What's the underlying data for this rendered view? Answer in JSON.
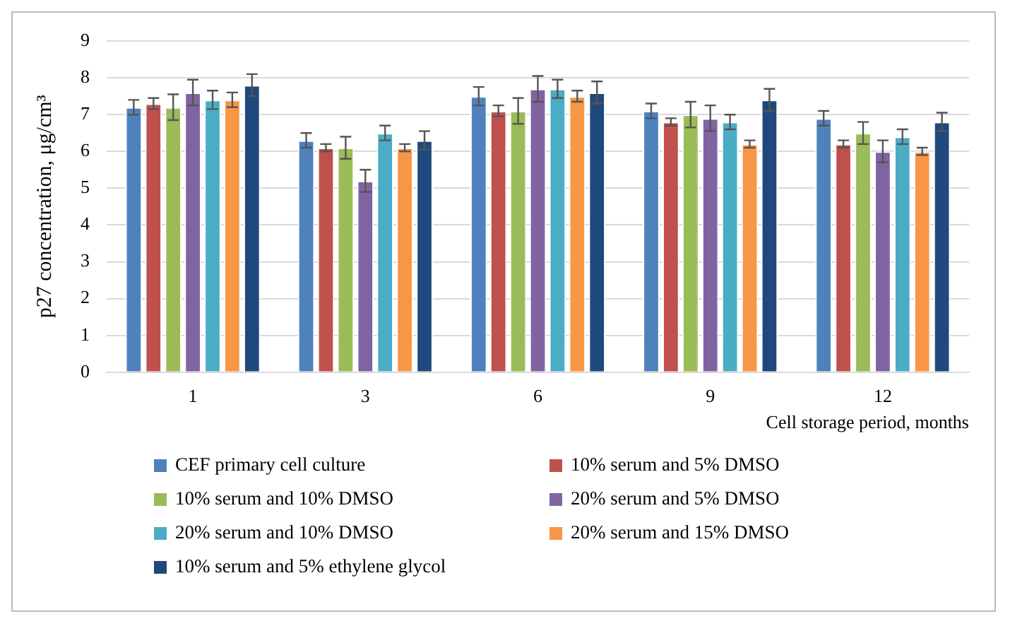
{
  "chart_data": {
    "type": "bar",
    "xlabel": "Cell storage period, months",
    "ylabel": "p27 concentration, μg/cm³",
    "categories": [
      "1",
      "3",
      "6",
      "9",
      "12"
    ],
    "ylim": [
      0,
      9
    ],
    "yticks": [
      0,
      1,
      2,
      3,
      4,
      5,
      6,
      7,
      8,
      9
    ],
    "grid": "y",
    "legend": "bottom",
    "series": [
      {
        "name": "CEF primary cell culture",
        "color": "#4f81bd",
        "values": [
          7.2,
          6.3,
          7.5,
          7.1,
          6.9
        ],
        "errors": [
          0.2,
          0.2,
          0.25,
          0.2,
          0.2
        ]
      },
      {
        "name": "10% serum and 5% DMSO",
        "color": "#c0504d",
        "values": [
          7.3,
          6.1,
          7.1,
          6.8,
          6.2
        ],
        "errors": [
          0.15,
          0.1,
          0.15,
          0.1,
          0.1
        ]
      },
      {
        "name": "10% serum and 10% DMSO",
        "color": "#9bbb59",
        "values": [
          7.2,
          6.1,
          7.1,
          7.0,
          6.5
        ],
        "errors": [
          0.35,
          0.3,
          0.35,
          0.35,
          0.3
        ]
      },
      {
        "name": "20% serum and 5% DMSO",
        "color": "#8064a2",
        "values": [
          7.6,
          5.2,
          7.7,
          6.9,
          6.0
        ],
        "errors": [
          0.35,
          0.3,
          0.35,
          0.35,
          0.3
        ]
      },
      {
        "name": "20% serum and 10% DMSO",
        "color": "#4bacc6",
        "values": [
          7.4,
          6.5,
          7.7,
          6.8,
          6.4
        ],
        "errors": [
          0.25,
          0.2,
          0.25,
          0.2,
          0.2
        ]
      },
      {
        "name": "20% serum and 15% DMSO",
        "color": "#f79646",
        "values": [
          7.4,
          6.1,
          7.5,
          6.2,
          6.0
        ],
        "errors": [
          0.2,
          0.1,
          0.15,
          0.1,
          0.1
        ]
      },
      {
        "name": "10% serum and 5% ethylene glycol",
        "color": "#1f497d",
        "values": [
          7.8,
          6.3,
          7.6,
          7.4,
          6.8
        ],
        "errors": [
          0.3,
          0.25,
          0.3,
          0.3,
          0.25
        ]
      }
    ]
  }
}
